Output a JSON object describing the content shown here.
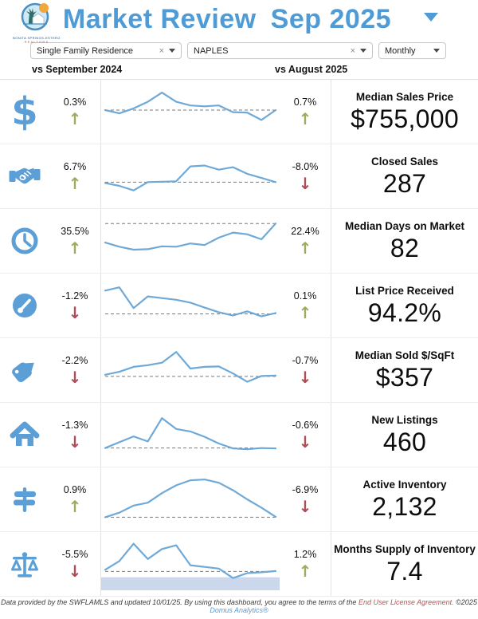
{
  "header": {
    "title": "Market Review",
    "period": "Sep 2025",
    "logo": {
      "line1": "BONITA SPRINGS-ESTERO",
      "line2": "REALTORS"
    }
  },
  "filters": {
    "property_type": "Single Family Residence",
    "market": "NAPLES",
    "frequency": "Monthly",
    "clear_glyph": "×"
  },
  "compare": {
    "left_label": "vs September 2024",
    "right_label": "vs August 2025"
  },
  "colors": {
    "accent_blue": "#4f9bd5",
    "icon_blue": "#5b9fd6",
    "line": "#6ea9d8",
    "refline": "#7a7a7a",
    "band": "#cbd8ec",
    "up_green": "#9dab5d",
    "down_red": "#ae4d57"
  },
  "rows": [
    {
      "icon": "dollar-icon",
      "icon_glyph": "$",
      "label": "Median Sales Price",
      "value": "$755,000",
      "yoy": {
        "pct": "0.3%",
        "dir": "up"
      },
      "mom": {
        "pct": "0.7%",
        "dir": "up"
      },
      "ref": 0.52,
      "spark": [
        0.52,
        0.44,
        0.56,
        0.72,
        0.94,
        0.72,
        0.63,
        0.61,
        0.63,
        0.47,
        0.46,
        0.28,
        0.52
      ]
    },
    {
      "icon": "handshake-icon",
      "label": "Closed Sales",
      "value": "287",
      "yoy": {
        "pct": "6.7%",
        "dir": "up"
      },
      "mom": {
        "pct": "-8.0%",
        "dir": "down"
      },
      "ref": 0.34,
      "spark": [
        0.32,
        0.25,
        0.14,
        0.34,
        0.35,
        0.36,
        0.72,
        0.74,
        0.64,
        0.7,
        0.54,
        0.44,
        0.34
      ]
    },
    {
      "icon": "clock-icon",
      "label": "Median Days on Market",
      "value": "82",
      "yoy": {
        "pct": "35.5%",
        "dir": "up"
      },
      "mom": {
        "pct": "22.4%",
        "dir": "up"
      },
      "ref": 0.9,
      "spark": [
        0.44,
        0.34,
        0.27,
        0.28,
        0.35,
        0.34,
        0.42,
        0.38,
        0.56,
        0.68,
        0.64,
        0.52,
        0.9
      ]
    },
    {
      "icon": "gauge-icon",
      "label": "List Price Received",
      "value": "94.2%",
      "yoy": {
        "pct": "-1.2%",
        "dir": "down"
      },
      "mom": {
        "pct": "0.1%",
        "dir": "up"
      },
      "ref": 0.28,
      "spark": [
        0.84,
        0.92,
        0.42,
        0.7,
        0.66,
        0.62,
        0.55,
        0.43,
        0.32,
        0.24,
        0.34,
        0.22,
        0.3
      ]
    },
    {
      "icon": "tag-icon",
      "label": "Median Sold $/SqFt",
      "value": "$357",
      "yoy": {
        "pct": "-2.2%",
        "dir": "down"
      },
      "mom": {
        "pct": "-0.7%",
        "dir": "down"
      },
      "ref": 0.33,
      "spark": [
        0.37,
        0.44,
        0.56,
        0.6,
        0.66,
        0.92,
        0.52,
        0.56,
        0.57,
        0.4,
        0.2,
        0.34,
        0.35
      ]
    },
    {
      "icon": "house-icon",
      "label": "New Listings",
      "value": "460",
      "yoy": {
        "pct": "-1.3%",
        "dir": "down"
      },
      "mom": {
        "pct": "-0.6%",
        "dir": "down"
      },
      "ref": 0.16,
      "spark": [
        0.16,
        0.3,
        0.44,
        0.32,
        0.88,
        0.62,
        0.56,
        0.43,
        0.27,
        0.15,
        0.13,
        0.16,
        0.15
      ]
    },
    {
      "icon": "signpost-icon",
      "label": "Active Inventory",
      "value": "2,132",
      "yoy": {
        "pct": "0.9%",
        "dir": "up"
      },
      "mom": {
        "pct": "-6.9%",
        "dir": "down"
      },
      "ref": 0.05,
      "spark": [
        0.05,
        0.16,
        0.33,
        0.4,
        0.63,
        0.82,
        0.94,
        0.96,
        0.88,
        0.7,
        0.48,
        0.28,
        0.06
      ]
    },
    {
      "icon": "scales-icon",
      "label": "Months Supply of Inventory",
      "value": "7.4",
      "yoy": {
        "pct": "-5.5%",
        "dir": "down"
      },
      "mom": {
        "pct": "1.2%",
        "dir": "up"
      },
      "ref": 0.3,
      "band_top": 0.16,
      "spark": [
        0.34,
        0.55,
        0.97,
        0.6,
        0.84,
        0.93,
        0.45,
        0.41,
        0.37,
        0.14,
        0.26,
        0.28,
        0.31
      ]
    }
  ],
  "footer": {
    "prefix": "Data provided by the SWFLAMLS and updated 10/01/25.  By using this dashboard, you agree to the terms of the ",
    "eula": "End User License Agreement.",
    "copyright": "  ©2025 ",
    "brand": "Domus Analytics®"
  }
}
